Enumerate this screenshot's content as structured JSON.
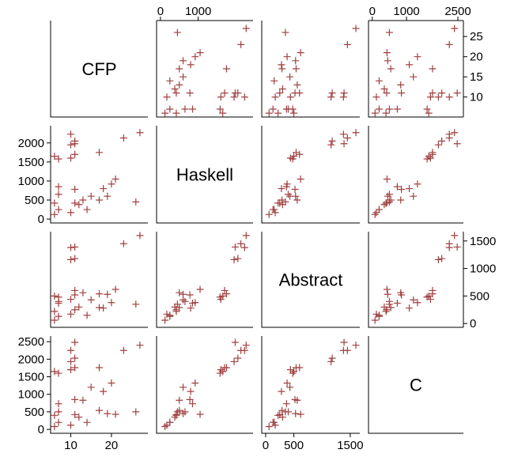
{
  "chart_data": {
    "type": "scatter",
    "title": "",
    "variables": [
      "CFP",
      "Haskell",
      "Abstract",
      "C"
    ],
    "marker": "+",
    "marker_color": "#a04040",
    "axis_color": "#000000",
    "ranges": {
      "CFP": [
        6,
        28
      ],
      "Haskell": [
        0,
        2350
      ],
      "Abstract": [
        0,
        1600
      ],
      "C": [
        0,
        2550
      ]
    },
    "ticks": {
      "CFP": [
        10,
        20
      ],
      "Haskell": [
        0,
        500,
        1000,
        1500,
        2000
      ],
      "Abstract": [
        0,
        500,
        1000,
        1500
      ],
      "C": [
        0,
        500,
        1000,
        1500,
        2000,
        2500
      ]
    },
    "top_ticks": {
      "Haskell": [
        0,
        1000
      ],
      "C": [
        0,
        1000,
        2500
      ]
    },
    "top_tick_labels": {
      "Haskell": [
        "0",
        "1000"
      ],
      "C": [
        "0",
        "1000",
        "2500"
      ]
    },
    "right_ticks": {
      "CFP": [
        10,
        15,
        20,
        25
      ],
      "Abstract": [
        0,
        500,
        1000,
        1500
      ]
    },
    "right_tick_labels": {
      "CFP": [
        "10",
        "15",
        "20",
        "25"
      ],
      "Abstract": [
        "0",
        "500",
        "1000",
        "1500"
      ]
    },
    "bottom_ticks": {
      "CFP": [
        10,
        20
      ],
      "Abstract": [
        0,
        500,
        1500
      ]
    },
    "bottom_tick_labels": {
      "CFP": [
        "10",
        "20"
      ],
      "Abstract": [
        "0",
        "500",
        "1500"
      ]
    },
    "left_ticks": {
      "Haskell": [
        0,
        500,
        1000,
        1500,
        2000
      ],
      "C": [
        0,
        500,
        1000,
        1500,
        2000,
        2500
      ]
    },
    "left_tick_labels": {
      "Haskell": [
        "0",
        "500",
        "1000",
        "1500",
        "2000"
      ],
      "C": [
        "0",
        "500",
        "1000",
        "1500",
        "2000",
        "2500"
      ]
    },
    "points": [
      {
        "CFP": 6,
        "Haskell": 120,
        "Abstract": 60,
        "C": 80
      },
      {
        "CFP": 7,
        "Haskell": 250,
        "Abstract": 130,
        "C": 200
      },
      {
        "CFP": 6,
        "Haskell": 420,
        "Abstract": 220,
        "C": 400
      },
      {
        "CFP": 7,
        "Haskell": 850,
        "Abstract": 370,
        "C": 730
      },
      {
        "CFP": 6,
        "Haskell": 1650,
        "Abstract": 500,
        "C": 1650
      },
      {
        "CFP": 7,
        "Haskell": 1580,
        "Abstract": 480,
        "C": 1600
      },
      {
        "CFP": 7,
        "Haskell": 650,
        "Abstract": 400,
        "C": 500
      },
      {
        "CFP": 10,
        "Haskell": 170,
        "Abstract": 170,
        "C": 120
      },
      {
        "CFP": 11,
        "Haskell": 420,
        "Abstract": 250,
        "C": 420
      },
      {
        "CFP": 10,
        "Haskell": 1600,
        "Abstract": 440,
        "C": 1700
      },
      {
        "CFP": 11,
        "Haskell": 1700,
        "Abstract": 600,
        "C": 1760
      },
      {
        "CFP": 10,
        "Haskell": 1950,
        "Abstract": 1160,
        "C": 1930
      },
      {
        "CFP": 11,
        "Haskell": 2050,
        "Abstract": 1180,
        "C": 2030
      },
      {
        "CFP": 10,
        "Haskell": 2230,
        "Abstract": 1380,
        "C": 2250
      },
      {
        "CFP": 11,
        "Haskell": 1980,
        "Abstract": 1390,
        "C": 2480
      },
      {
        "CFP": 11,
        "Haskell": 780,
        "Abstract": 520,
        "C": 850
      },
      {
        "CFP": 12,
        "Haskell": 380,
        "Abstract": 300,
        "C": 350
      },
      {
        "CFP": 13,
        "Haskell": 500,
        "Abstract": 560,
        "C": 830
      },
      {
        "CFP": 14,
        "Haskell": 250,
        "Abstract": 150,
        "C": 200
      },
      {
        "CFP": 15,
        "Haskell": 600,
        "Abstract": 430,
        "C": 1200
      },
      {
        "CFP": 17,
        "Haskell": 1750,
        "Abstract": 540,
        "C": 1760
      },
      {
        "CFP": 17,
        "Haskell": 500,
        "Abstract": 290,
        "C": 540
      },
      {
        "CFP": 18,
        "Haskell": 800,
        "Abstract": 280,
        "C": 1080
      },
      {
        "CFP": 19,
        "Haskell": 600,
        "Abstract": 530,
        "C": 450
      },
      {
        "CFP": 20,
        "Haskell": 920,
        "Abstract": 380,
        "C": 1320
      },
      {
        "CFP": 21,
        "Haskell": 1050,
        "Abstract": 620,
        "C": 430
      },
      {
        "CFP": 23,
        "Haskell": 2130,
        "Abstract": 1450,
        "C": 2250
      },
      {
        "CFP": 26,
        "Haskell": 450,
        "Abstract": 350,
        "C": 500
      },
      {
        "CFP": 27,
        "Haskell": 2270,
        "Abstract": 1600,
        "C": 2400
      }
    ]
  }
}
